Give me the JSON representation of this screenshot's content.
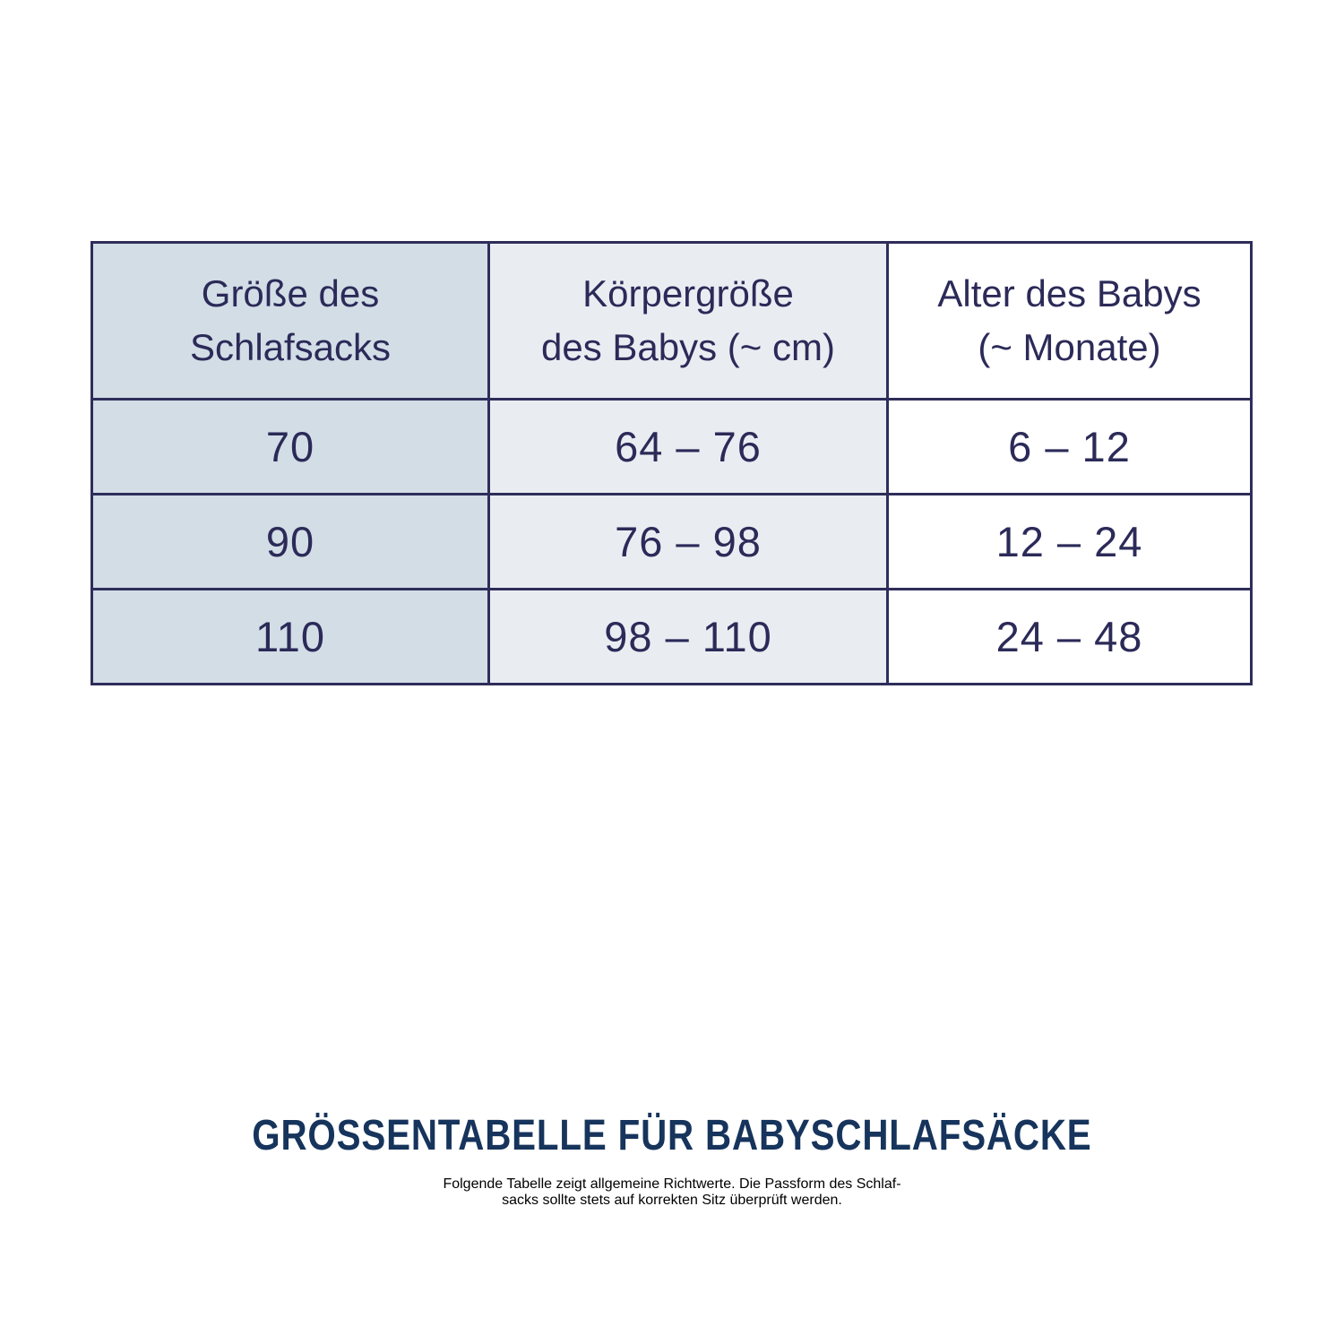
{
  "page": {
    "background": "#ffffff"
  },
  "table": {
    "border_color": "#2e2d5a",
    "text_color": "#2b2a58",
    "columns": [
      {
        "header_line1": "Größe des",
        "header_line2": "Schlafsacks",
        "bg": "#d2dde6"
      },
      {
        "header_line1": "Körpergröße",
        "header_line2": "des Babys (~ cm)",
        "bg": "#e9edf2"
      },
      {
        "header_line1": "Alter des Babys",
        "header_line2": "(~ Monate)",
        "bg": "#ffffff"
      }
    ],
    "rows": [
      [
        "70",
        "64 – 76",
        "6 – 12"
      ],
      [
        "90",
        "76 – 98",
        "12 – 24"
      ],
      [
        "110",
        "98 – 110",
        "24 – 48"
      ]
    ]
  },
  "note": {
    "title": "GRÖSSENTABELLE FÜR BABYSCHLAFSÄCKE",
    "title_color": "#16345c",
    "line1": "Folgende Tabelle zeigt allgemeine Richtwerte. Die Passform des Schlaf-",
    "line2": "sacks sollte stets auf korrekten Sitz überprüft werden.",
    "text_color": "#1d3b5f"
  },
  "chart_data": {
    "type": "table",
    "title": "GRÖSSENTABELLE FÜR BABYSCHLAFSÄCKE",
    "description": "Folgende Tabelle zeigt allgemeine Richtwerte. Die Passform des Schlafsacks sollte stets auf korrekten Sitz überprüft werden.",
    "columns": [
      "Größe des Schlafsacks",
      "Körpergröße des Babys (~ cm)",
      "Alter des Babys (~ Monate)"
    ],
    "rows": [
      [
        "70",
        "64 – 76",
        "6 – 12"
      ],
      [
        "90",
        "76 – 98",
        "12 – 24"
      ],
      [
        "110",
        "98 – 110",
        "24 – 48"
      ]
    ],
    "rows_numeric": [
      {
        "schlafsack_groesse": 70,
        "koerpergroesse_cm": [
          64,
          76
        ],
        "alter_monate": [
          6,
          12
        ]
      },
      {
        "schlafsack_groesse": 90,
        "koerpergroesse_cm": [
          76,
          98
        ],
        "alter_monate": [
          12,
          24
        ]
      },
      {
        "schlafsack_groesse": 110,
        "koerpergroesse_cm": [
          98,
          110
        ],
        "alter_monate": [
          24,
          48
        ]
      }
    ],
    "layout": {
      "grid": true,
      "legend_position": "none"
    }
  }
}
